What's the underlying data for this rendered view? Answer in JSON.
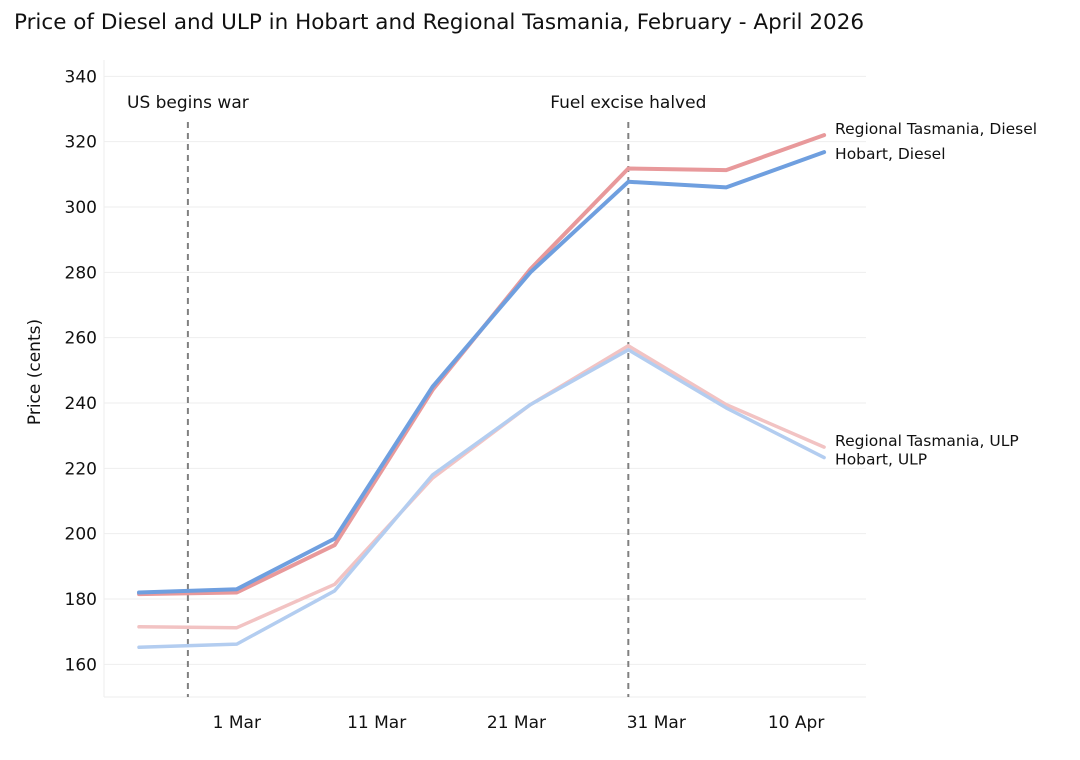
{
  "chart_data": {
    "type": "line",
    "title": "Price of Diesel and ULP in Hobart and Regional Tasmania, February - April 2026",
    "xlabel": "",
    "ylabel": "Price (cents)",
    "ylim": [
      150,
      345
    ],
    "xlim_days": [
      -9.5,
      45
    ],
    "x_axis_note": "x values are days relative to 1 Mar 2026",
    "x_ticks": [
      {
        "day": 0,
        "label": "1 Mar"
      },
      {
        "day": 10,
        "label": "11 Mar"
      },
      {
        "day": 20,
        "label": "21 Mar"
      },
      {
        "day": 30,
        "label": "31 Mar"
      },
      {
        "day": 40,
        "label": "10 Apr"
      }
    ],
    "y_ticks": [
      160,
      180,
      200,
      220,
      240,
      260,
      280,
      300,
      320,
      340
    ],
    "grid": true,
    "x": [
      -7,
      0,
      7,
      14,
      21,
      28,
      35,
      42
    ],
    "series": [
      {
        "name": "Regional Tasmania, Diesel",
        "label": "Regional Tasmania, Diesel",
        "color": "#e8999b",
        "width": 4,
        "values": [
          181.5,
          182,
          196.5,
          244,
          281,
          311.8,
          311.3,
          322
        ]
      },
      {
        "name": "Hobart, Diesel",
        "label": "Hobart, Diesel",
        "color": "#6f9fdf",
        "width": 4,
        "values": [
          182,
          183,
          198.5,
          245,
          280,
          307.7,
          306,
          316.8
        ]
      },
      {
        "name": "Regional Tasmania, ULP",
        "label": "Regional Tasmania, ULP",
        "color": "#f2c3c3",
        "width": 3.5,
        "values": [
          171.5,
          171.2,
          184.5,
          217,
          239.5,
          257.5,
          239.5,
          226.5
        ]
      },
      {
        "name": "Hobart, ULP",
        "label": "Hobart, ULP",
        "color": "#b3cdf0",
        "width": 3.5,
        "values": [
          165.2,
          166.2,
          182.5,
          218,
          239.5,
          256.3,
          238.5,
          223.3
        ]
      }
    ],
    "annotations": [
      {
        "day": -3.5,
        "label": "US begins war"
      },
      {
        "day": 28,
        "label": "Fuel excise halved"
      }
    ]
  }
}
